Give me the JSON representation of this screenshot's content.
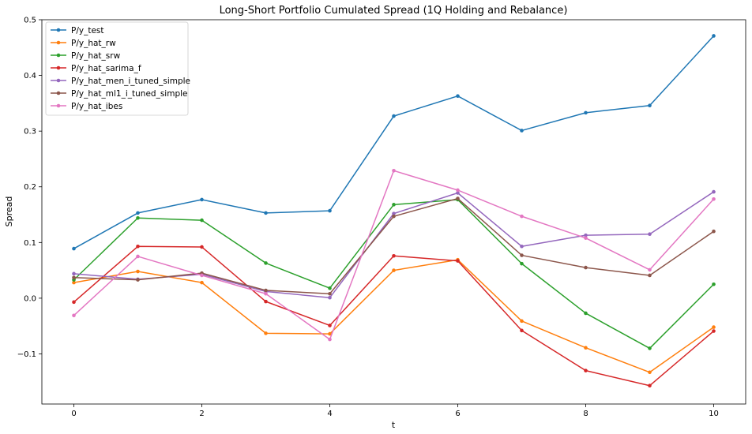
{
  "chart_data": {
    "type": "line",
    "title": "Long-Short Portfolio Cumulated Spread (1Q Holding and Rebalance)",
    "xlabel": "t",
    "ylabel": "Spread",
    "xlim": [
      -0.5,
      10.5
    ],
    "ylim": [
      -0.19,
      0.5
    ],
    "xticks": [
      0,
      2,
      4,
      6,
      8,
      10
    ],
    "yticks": [
      -0.1,
      0.0,
      0.1,
      0.2,
      0.3,
      0.4,
      0.5
    ],
    "ytick_labels": [
      "−0.1",
      "0.0",
      "0.1",
      "0.2",
      "0.3",
      "0.4",
      "0.5"
    ],
    "grid": false,
    "legend_position": "top-left",
    "x": [
      0,
      1,
      2,
      3,
      4,
      5,
      6,
      7,
      8,
      9,
      10
    ],
    "series": [
      {
        "name": "P/y_test",
        "color": "#1f77b4",
        "values": [
          0.089,
          0.153,
          0.177,
          0.153,
          0.157,
          0.327,
          0.363,
          0.301,
          0.333,
          0.346,
          0.471
        ]
      },
      {
        "name": "P/y_hat_rw",
        "color": "#ff7f0e",
        "values": [
          0.028,
          0.048,
          0.028,
          -0.063,
          -0.064,
          0.05,
          0.069,
          -0.041,
          -0.089,
          -0.133,
          -0.052
        ]
      },
      {
        "name": "P/y_hat_srw",
        "color": "#2ca02c",
        "values": [
          0.033,
          0.144,
          0.14,
          0.063,
          0.018,
          0.168,
          0.177,
          0.062,
          -0.027,
          -0.09,
          0.025
        ]
      },
      {
        "name": "P/y_hat_sarima_f",
        "color": "#d62728",
        "values": [
          -0.007,
          0.093,
          0.092,
          -0.006,
          -0.049,
          0.076,
          0.067,
          -0.058,
          -0.13,
          -0.157,
          -0.059
        ]
      },
      {
        "name": "P/y_hat_men_i_tuned_simple",
        "color": "#9467bd",
        "values": [
          0.044,
          0.034,
          0.043,
          0.012,
          0.001,
          0.152,
          0.189,
          0.093,
          0.113,
          0.115,
          0.191
        ]
      },
      {
        "name": "P/y_hat_ml1_i_tuned_simple",
        "color": "#8c564b",
        "values": [
          0.037,
          0.033,
          0.045,
          0.014,
          0.008,
          0.147,
          0.179,
          0.077,
          0.055,
          0.041,
          0.12
        ]
      },
      {
        "name": "P/y_hat_ibes",
        "color": "#e377c2",
        "values": [
          -0.031,
          0.075,
          0.041,
          0.008,
          -0.074,
          0.229,
          0.194,
          0.147,
          0.108,
          0.051,
          0.178
        ]
      }
    ]
  }
}
